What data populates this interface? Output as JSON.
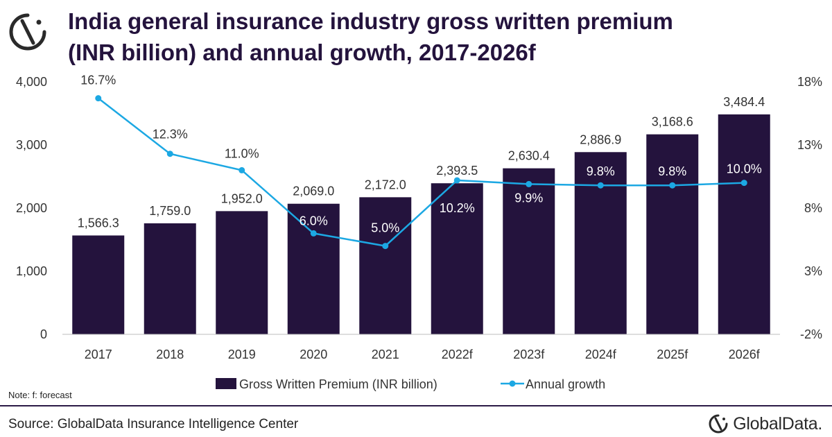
{
  "header": {
    "title_line1": "India general insurance industry gross written premium",
    "title_line2": "(INR billion) and annual growth, 2017-2026f",
    "logo_icon": "globaldata-logo-icon"
  },
  "footer": {
    "note": "Note: f: forecast",
    "source": "Source: GlobalData Insurance Intelligence Center",
    "brand": "GlobalData."
  },
  "colors": {
    "bar": "#24133d",
    "line": "#1ca8e3",
    "title": "#24133d"
  },
  "chart_data": {
    "type": "bar",
    "categories": [
      "2017",
      "2018",
      "2019",
      "2020",
      "2021",
      "2022f",
      "2023f",
      "2024f",
      "2025f",
      "2026f"
    ],
    "series": [
      {
        "name": "Gross Written Premium (INR billion)",
        "type": "bar",
        "axis": "left",
        "values": [
          1566.3,
          1759.0,
          1952.0,
          2069.0,
          2172.0,
          2393.5,
          2630.4,
          2886.9,
          3168.6,
          3484.4
        ],
        "labels": [
          "1,566.3",
          "1,759.0",
          "1,952.0",
          "2,069.0",
          "2,172.0",
          "2,393.5",
          "2,630.4",
          "2,886.9",
          "3,168.6",
          "3,484.4"
        ]
      },
      {
        "name": "Annual growth",
        "type": "line",
        "axis": "right",
        "values": [
          16.7,
          12.3,
          11.0,
          6.0,
          5.0,
          10.2,
          9.9,
          9.8,
          9.8,
          10.0
        ],
        "labels": [
          "16.7%",
          "12.3%",
          "11.0%",
          "6.0%",
          "5.0%",
          "10.2%",
          "9.9%",
          "9.8%",
          "9.8%",
          "10.0%"
        ]
      }
    ],
    "y_left": {
      "ylim": [
        0,
        4000
      ],
      "ticks": [
        "0",
        "1,000",
        "2,000",
        "3,000",
        "4,000"
      ],
      "tick_values": [
        0,
        1000,
        2000,
        3000,
        4000
      ]
    },
    "y_right": {
      "ylim": [
        -2,
        18
      ],
      "ticks": [
        "-2%",
        "3%",
        "8%",
        "13%",
        "18%"
      ],
      "tick_values": [
        -2,
        3,
        8,
        13,
        18
      ]
    },
    "legend": {
      "placement": "bottom"
    },
    "grid": false
  }
}
